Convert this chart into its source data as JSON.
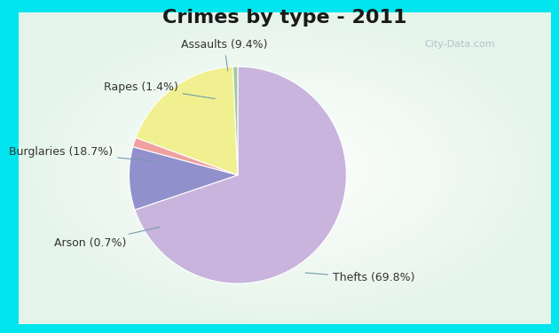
{
  "title": "Crimes by type - 2011",
  "slices": [
    {
      "label": "Thefts (69.8%)",
      "value": 69.8,
      "color": "#C8B4DC"
    },
    {
      "label": "Assaults (9.4%)",
      "value": 9.4,
      "color": "#9090CC"
    },
    {
      "label": "Rapes (1.4%)",
      "value": 1.4,
      "color": "#F0A0A0"
    },
    {
      "label": "Burglaries (18.7%)",
      "value": 18.7,
      "color": "#F0F090"
    },
    {
      "label": "Arson (0.7%)",
      "value": 0.7,
      "color": "#A0C8A0"
    }
  ],
  "bg_cyan": "#00E5EE",
  "title_fontsize": 16,
  "label_fontsize": 9,
  "startangle": 90,
  "title_color": "#1a1a1a",
  "watermark": "City-Data.com",
  "watermark_color": "#aabbc8",
  "label_color": "#333333",
  "arrow_color": "#7799aa"
}
